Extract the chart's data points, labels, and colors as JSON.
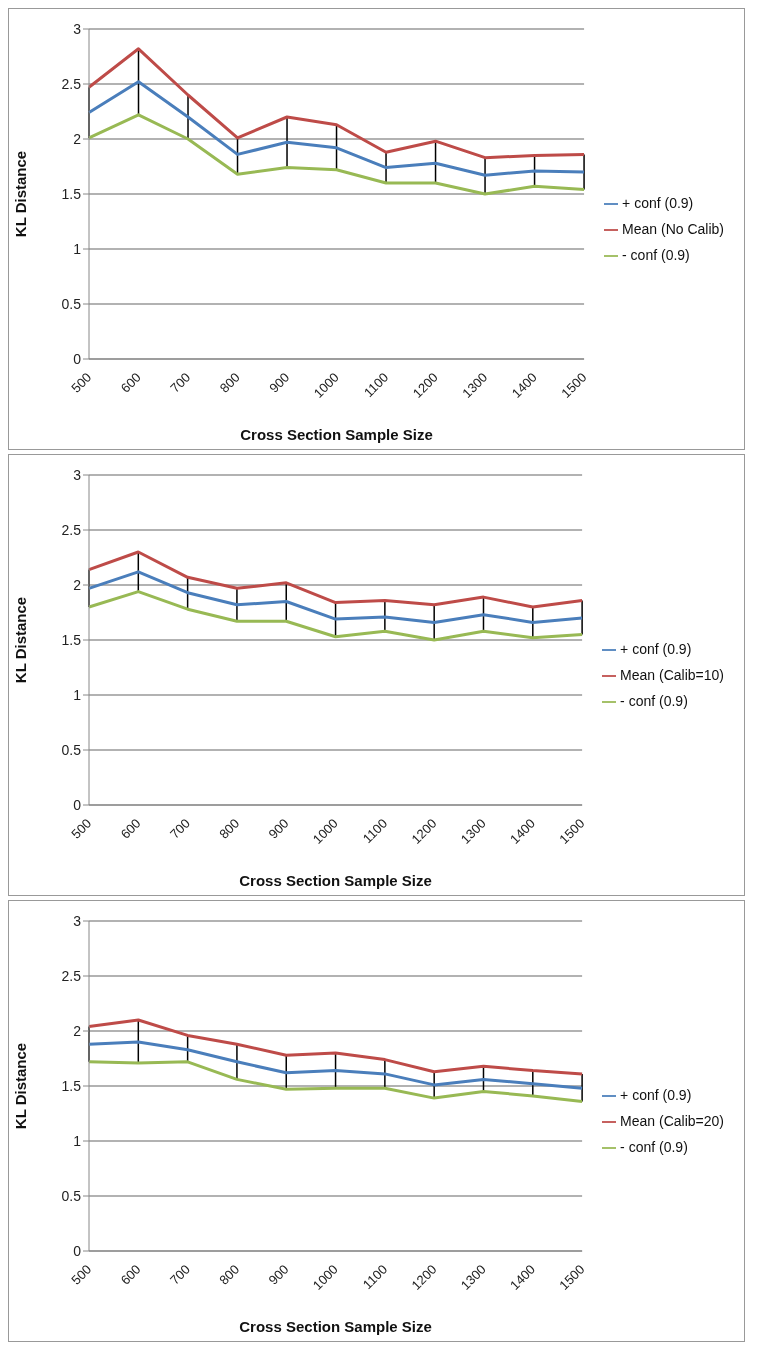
{
  "chart_data": [
    {
      "type": "line",
      "xlabel": "Cross Section Sample Size",
      "ylabel": "KL Distance",
      "categories": [
        "500",
        "600",
        "700",
        "800",
        "900",
        "1000",
        "1100",
        "1200",
        "1300",
        "1400",
        "1500"
      ],
      "ylim": [
        0,
        3
      ],
      "yticks": [
        0,
        0.5,
        1,
        1.5,
        2,
        2.5,
        3
      ],
      "grid": "y",
      "legend": "right",
      "marker": "none",
      "line_style": "solid",
      "series": [
        {
          "name": "+ conf (0.9)",
          "color": "#4a7ebb",
          "values": [
            2.24,
            2.52,
            2.2,
            1.86,
            1.97,
            1.92,
            1.74,
            1.78,
            1.67,
            1.71,
            1.7
          ],
          "errors": [
            [
              2.01,
              2.47
            ],
            [
              2.22,
              2.82
            ],
            [
              2.0,
              2.4
            ],
            [
              1.68,
              2.01
            ],
            [
              1.74,
              2.2
            ],
            [
              1.72,
              2.13
            ],
            [
              1.6,
              1.88
            ],
            [
              1.6,
              1.98
            ],
            [
              1.5,
              1.83
            ],
            [
              1.57,
              1.85
            ],
            [
              1.54,
              1.86
            ]
          ]
        },
        {
          "name": "Mean (No Calib)",
          "color": "#be4b48",
          "values": [
            2.47,
            2.82,
            2.4,
            2.01,
            2.2,
            2.13,
            1.88,
            1.98,
            1.83,
            1.85,
            1.86
          ]
        },
        {
          "name": "- conf (0.9)",
          "color": "#98b954",
          "values": [
            2.01,
            2.22,
            2.0,
            1.68,
            1.74,
            1.72,
            1.6,
            1.6,
            1.5,
            1.57,
            1.54
          ]
        }
      ]
    },
    {
      "type": "line",
      "xlabel": "Cross Section Sample Size",
      "ylabel": "KL Distance",
      "categories": [
        "500",
        "600",
        "700",
        "800",
        "900",
        "1000",
        "1100",
        "1200",
        "1300",
        "1400",
        "1500"
      ],
      "ylim": [
        0,
        3
      ],
      "yticks": [
        0,
        0.5,
        1,
        1.5,
        2,
        2.5,
        3
      ],
      "grid": "y",
      "legend": "right",
      "marker": "none",
      "line_style": "solid",
      "series": [
        {
          "name": "+ conf (0.9)",
          "color": "#4a7ebb",
          "values": [
            1.97,
            2.12,
            1.93,
            1.82,
            1.85,
            1.69,
            1.71,
            1.66,
            1.73,
            1.66,
            1.7
          ],
          "errors": [
            [
              1.8,
              2.14
            ],
            [
              1.94,
              2.3
            ],
            [
              1.78,
              2.07
            ],
            [
              1.67,
              1.97
            ],
            [
              1.67,
              2.02
            ],
            [
              1.53,
              1.84
            ],
            [
              1.58,
              1.86
            ],
            [
              1.5,
              1.82
            ],
            [
              1.58,
              1.89
            ],
            [
              1.52,
              1.8
            ],
            [
              1.55,
              1.86
            ]
          ]
        },
        {
          "name": "Mean (Calib=10)",
          "color": "#be4b48",
          "values": [
            2.14,
            2.3,
            2.07,
            1.97,
            2.02,
            1.84,
            1.86,
            1.82,
            1.89,
            1.8,
            1.86
          ]
        },
        {
          "name": "- conf (0.9)",
          "color": "#98b954",
          "values": [
            1.8,
            1.94,
            1.78,
            1.67,
            1.67,
            1.53,
            1.58,
            1.5,
            1.58,
            1.52,
            1.55
          ]
        }
      ]
    },
    {
      "type": "line",
      "xlabel": "Cross Section Sample Size",
      "ylabel": "KL Distance",
      "categories": [
        "500",
        "600",
        "700",
        "800",
        "900",
        "1000",
        "1100",
        "1200",
        "1300",
        "1400",
        "1500"
      ],
      "ylim": [
        0,
        3
      ],
      "yticks": [
        0,
        0.5,
        1,
        1.5,
        2,
        2.5,
        3
      ],
      "grid": "y",
      "legend": "right",
      "marker": "none",
      "line_style": "solid",
      "series": [
        {
          "name": "+ conf (0.9)",
          "color": "#4a7ebb",
          "values": [
            1.88,
            1.9,
            1.83,
            1.72,
            1.62,
            1.64,
            1.61,
            1.51,
            1.56,
            1.52,
            1.48
          ],
          "errors": [
            [
              1.72,
              2.04
            ],
            [
              1.71,
              2.1
            ],
            [
              1.72,
              1.96
            ],
            [
              1.56,
              1.88
            ],
            [
              1.47,
              1.78
            ],
            [
              1.48,
              1.8
            ],
            [
              1.48,
              1.74
            ],
            [
              1.39,
              1.63
            ],
            [
              1.45,
              1.68
            ],
            [
              1.41,
              1.64
            ],
            [
              1.36,
              1.61
            ]
          ]
        },
        {
          "name": "Mean (Calib=20)",
          "color": "#be4b48",
          "values": [
            2.04,
            2.1,
            1.96,
            1.88,
            1.78,
            1.8,
            1.74,
            1.63,
            1.68,
            1.64,
            1.61
          ]
        },
        {
          "name": "- conf (0.9)",
          "color": "#98b954",
          "values": [
            1.72,
            1.71,
            1.72,
            1.56,
            1.47,
            1.48,
            1.48,
            1.39,
            1.45,
            1.41,
            1.36
          ]
        }
      ]
    }
  ]
}
